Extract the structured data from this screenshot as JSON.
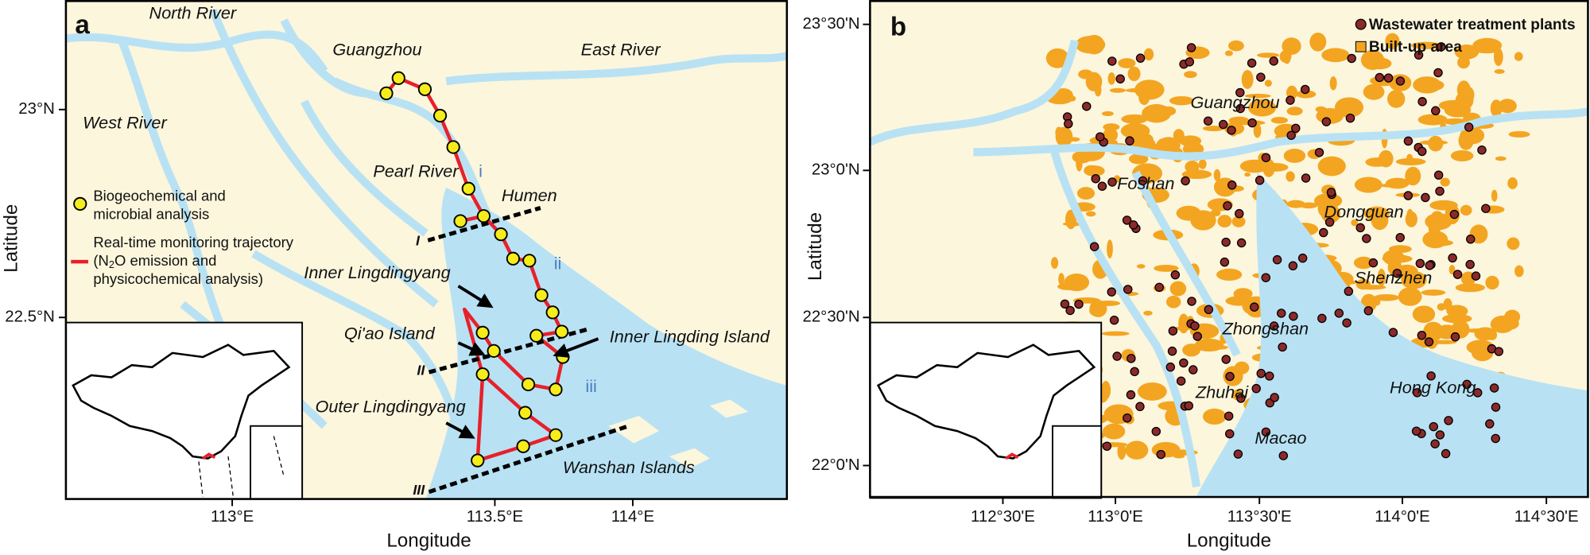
{
  "panel_a": {
    "label": "a",
    "places": [
      "North River",
      "East River",
      "Guangzhou",
      "West River",
      "Pearl River",
      "Humen",
      "Inner Lingdingyang",
      "Qi'ao Island",
      "Inner Lingding Island",
      "Outer Lingdingyang",
      "Wanshan Islands"
    ],
    "transect_labels": [
      "I",
      "II",
      "III"
    ],
    "region_labels": [
      "i",
      "ii",
      "iii"
    ],
    "legend": {
      "sampling": [
        "Biogeochemical and",
        "microbial analysis"
      ],
      "trajectory": {
        "line1": "Real-time monitoring trajectory",
        "line2_before": "(N",
        "line2_subscript": "2",
        "line2_after": "O emission and",
        "line3": "physicochemical analysis)"
      }
    },
    "x_axis": {
      "label": "Longitude",
      "ticks": [
        "113°E",
        "113.5°E",
        "114°E"
      ]
    },
    "y_axis": {
      "label": "Latitude",
      "ticks": [
        "23°N",
        "22.5°N"
      ]
    }
  },
  "panel_b": {
    "label": "b",
    "legend": [
      "Wastewater treatment plants",
      "Built-up area"
    ],
    "places": [
      "Guangzhou",
      "Foshan",
      "Dongguan",
      "Shenzhen",
      "Zhongshan",
      "Zhuhai",
      "Macao",
      "Hong Kong"
    ],
    "x_axis": {
      "label": "Longitude",
      "ticks": [
        "112°30'E",
        "113°0'E",
        "113°30'E",
        "114°0'E",
        "114°30'E"
      ]
    },
    "y_axis": {
      "label": "Latitude",
      "ticks": [
        "23°30'N",
        "23°0'N",
        "22°30'N",
        "22°0'N"
      ]
    }
  }
}
